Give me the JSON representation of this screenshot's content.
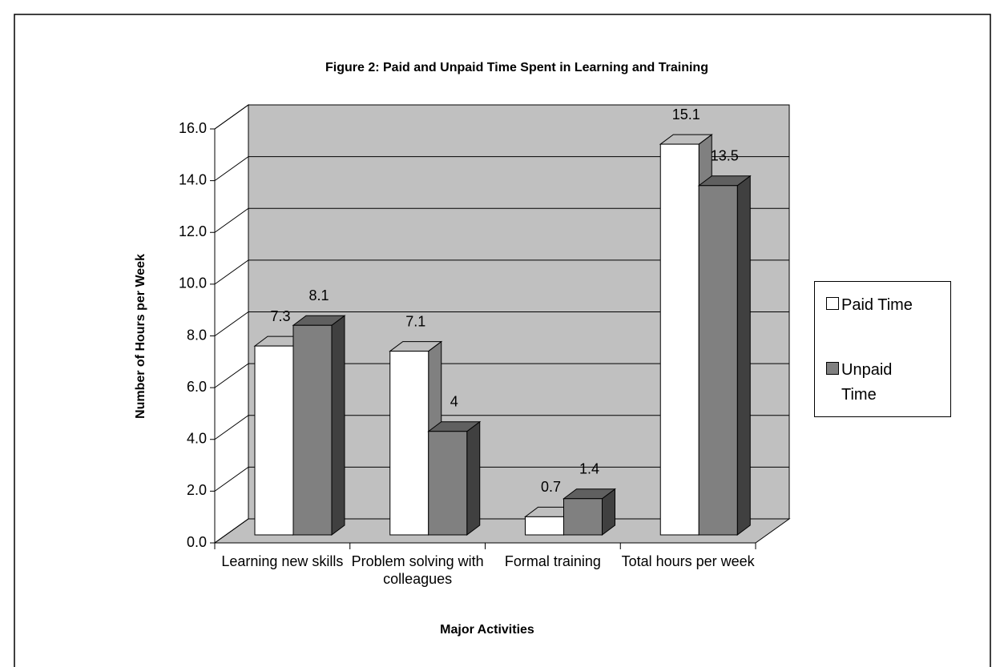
{
  "chart_data": {
    "type": "bar3d",
    "title": "Figure 2: Paid and Unpaid Time Spent in Learning and Training",
    "x_label": "Major Activities",
    "y_label": "Number of Hours per Week",
    "categories": [
      "Learning new skills",
      "Problem solving with colleagues",
      "Formal training",
      "Total hours per week"
    ],
    "series": [
      {
        "name": "Paid Time",
        "color": "#ffffff",
        "values": [
          7.3,
          7.1,
          0.7,
          15.1
        ]
      },
      {
        "name": "Unpaid Time",
        "color": "#808080",
        "values": [
          8.1,
          4.0,
          1.4,
          13.5
        ]
      }
    ],
    "ylim": [
      0,
      16
    ],
    "yticks": [
      {
        "value": 0,
        "label": "0.0"
      },
      {
        "value": 2,
        "label": "2.0"
      },
      {
        "value": 4,
        "label": "4.0"
      },
      {
        "value": 6,
        "label": "6.0"
      },
      {
        "value": 8,
        "label": "8.0"
      },
      {
        "value": 10,
        "label": "10.0"
      },
      {
        "value": 12,
        "label": "12.0"
      },
      {
        "value": 14,
        "label": "14.0"
      },
      {
        "value": 16,
        "label": "16.0"
      }
    ],
    "grid": true,
    "legend": "right",
    "wall_color": "#c0c0c0"
  }
}
